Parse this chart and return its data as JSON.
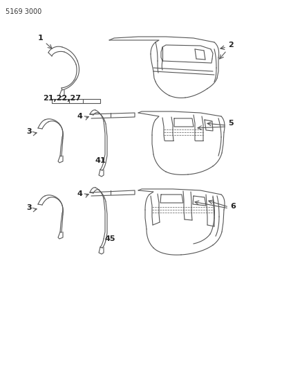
{
  "title": "5169 3000",
  "bg_color": "#ffffff",
  "line_color": "#555555",
  "label_color": "#222222",
  "figsize": [
    4.08,
    5.33
  ],
  "dpi": 100,
  "labels": {
    "part_number": "5169 3000",
    "label_1": "1",
    "label_2": "2",
    "label_21_22_27": "21,22,27",
    "label_3a": "3",
    "label_4a": "4",
    "label_5": "5",
    "label_41": "41",
    "label_3b": "3",
    "label_4b": "4",
    "label_6": "6",
    "label_45": "45"
  }
}
